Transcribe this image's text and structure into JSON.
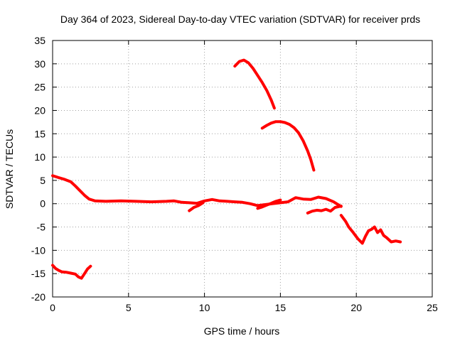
{
  "chart_data": {
    "type": "scatter",
    "title": "Day 364 of 2023, Sidereal Day-to-day VTEC variation (SDTVAR) for receiver prds",
    "xlabel": "GPS time / hours",
    "ylabel": "SDTVAR / TECUs",
    "xlim": [
      0,
      25
    ],
    "ylim": [
      -20,
      35
    ],
    "x_ticks": [
      0,
      5,
      10,
      15,
      20,
      25
    ],
    "y_ticks": [
      -20,
      -15,
      -10,
      -5,
      0,
      5,
      10,
      15,
      20,
      25,
      30,
      35
    ],
    "grid": true,
    "color": "#ff0000",
    "series": [
      {
        "name": "main-track",
        "x": [
          0.0,
          0.4,
          0.8,
          1.2,
          1.5,
          1.8,
          2.1,
          2.4,
          2.8,
          3.5,
          4.5,
          5.5,
          6.5,
          7.5,
          8.0,
          8.5,
          9.0,
          9.5,
          10.0,
          10.5,
          11.0,
          11.5,
          12.0,
          12.5,
          13.0,
          13.5,
          14.0,
          14.5,
          15.0,
          15.5,
          16.0,
          16.5,
          17.0,
          17.5,
          18.0,
          18.5,
          19.0
        ],
        "y": [
          6.0,
          5.6,
          5.2,
          4.7,
          3.8,
          2.8,
          1.8,
          1.0,
          0.6,
          0.5,
          0.6,
          0.5,
          0.4,
          0.5,
          0.6,
          0.3,
          0.2,
          0.1,
          0.6,
          0.9,
          0.6,
          0.5,
          0.4,
          0.3,
          0.0,
          -0.4,
          -0.2,
          0.0,
          0.2,
          0.4,
          1.3,
          1.0,
          0.9,
          1.4,
          1.1,
          0.4,
          -0.6
        ]
      },
      {
        "name": "segment-after-9h",
        "x": [
          9.0,
          9.3,
          9.6,
          9.9
        ],
        "y": [
          -1.5,
          -0.8,
          -0.4,
          0.2
        ]
      },
      {
        "name": "secondary-track-13-15h",
        "x": [
          13.5,
          13.8,
          14.1,
          14.4,
          14.7,
          15.0
        ],
        "y": [
          -1.0,
          -0.7,
          -0.3,
          0.1,
          0.5,
          0.8
        ]
      },
      {
        "name": "late-track-17-19h",
        "x": [
          16.8,
          17.1,
          17.4,
          17.7,
          18.0,
          18.3,
          18.6,
          19.0
        ],
        "y": [
          -2.0,
          -1.6,
          -1.4,
          -1.5,
          -1.2,
          -1.6,
          -0.8,
          -0.5
        ]
      },
      {
        "name": "decline-19-23h",
        "x": [
          19.0,
          19.3,
          19.5,
          19.8,
          20.1,
          20.4,
          20.6,
          20.8,
          21.0,
          21.2,
          21.4,
          21.6,
          21.8,
          22.0,
          22.3,
          22.6,
          22.9
        ],
        "y": [
          -2.5,
          -3.8,
          -5.0,
          -6.2,
          -7.5,
          -8.5,
          -7.0,
          -5.8,
          -5.5,
          -5.0,
          -6.2,
          -5.6,
          -6.8,
          -7.3,
          -8.2,
          -8.0,
          -8.2
        ]
      },
      {
        "name": "early-negative",
        "x": [
          0.0,
          0.2,
          0.4,
          0.6,
          0.9,
          1.2,
          1.5,
          1.7,
          1.9,
          2.1,
          2.3,
          2.5
        ],
        "y": [
          -13.2,
          -13.9,
          -14.3,
          -14.6,
          -14.7,
          -14.9,
          -15.1,
          -15.7,
          -16.0,
          -15.0,
          -14.0,
          -13.4
        ]
      },
      {
        "name": "arc-upper",
        "x": [
          12.0,
          12.3,
          12.6,
          12.9,
          13.2,
          13.5,
          13.8,
          14.1,
          14.4,
          14.6
        ],
        "y": [
          29.5,
          30.5,
          30.8,
          30.2,
          29.0,
          27.5,
          26.0,
          24.3,
          22.2,
          20.5
        ]
      },
      {
        "name": "arc-middle",
        "x": [
          13.8,
          14.1,
          14.4,
          14.7,
          15.0,
          15.3,
          15.6,
          15.9,
          16.2,
          16.5,
          16.8,
          17.0,
          17.2
        ],
        "y": [
          16.2,
          16.8,
          17.3,
          17.6,
          17.6,
          17.4,
          17.0,
          16.3,
          15.2,
          13.5,
          11.3,
          9.5,
          7.2
        ]
      }
    ]
  }
}
